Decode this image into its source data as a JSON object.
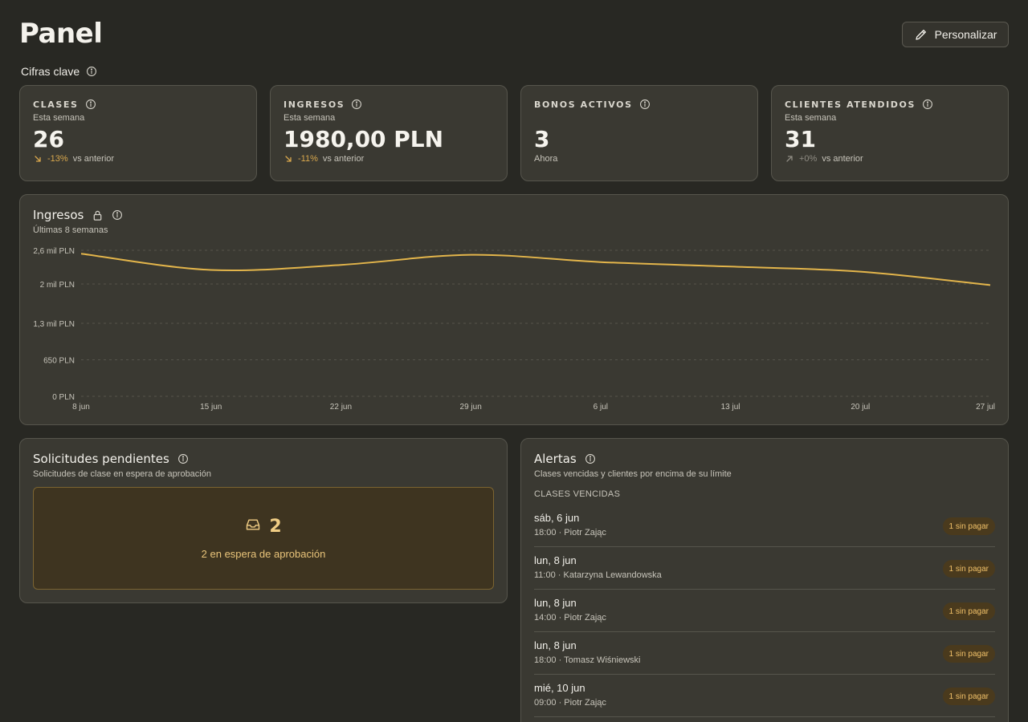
{
  "header": {
    "title": "Panel",
    "customize_label": "Personalizar"
  },
  "key_figures": {
    "label": "Cifras clave",
    "cards": [
      {
        "label": "CLASES",
        "sub": "Esta semana",
        "value": "26",
        "delta": "-13%",
        "delta_suffix": "vs anterior",
        "trend": "down"
      },
      {
        "label": "INGRESOS",
        "sub": "Esta semana",
        "value": "1980,00 PLN",
        "delta": "-11%",
        "delta_suffix": "vs anterior",
        "trend": "down"
      },
      {
        "label": "BONOS ACTIVOS",
        "sub": "",
        "value": "3",
        "delta": "",
        "delta_suffix": "Ahora",
        "trend": "none"
      },
      {
        "label": "CLIENTES ATENDIDOS",
        "sub": "Esta semana",
        "value": "31",
        "delta": "+0%",
        "delta_suffix": "vs anterior",
        "trend": "flat"
      }
    ]
  },
  "revenue": {
    "title": "Ingresos",
    "subtitle": "Últimas 8 semanas"
  },
  "chart_data": {
    "type": "line",
    "title": "Ingresos",
    "subtitle": "Últimas 8 semanas",
    "categories": [
      "8 jun",
      "15 jun",
      "22 jun",
      "29 jun",
      "6 jul",
      "13 jul",
      "20 jul",
      "27 jul"
    ],
    "series": [
      {
        "values": [
          2540,
          2250,
          2340,
          2520,
          2390,
          2310,
          2220,
          1980
        ]
      }
    ],
    "y_ticks": [
      0,
      650,
      1300,
      2000,
      2600
    ],
    "y_tick_labels": [
      "0 PLN",
      "650 PLN",
      "1,3 mil PLN",
      "2 mil PLN",
      "2,6 mil PLN"
    ],
    "ylim": [
      0,
      2600
    ],
    "grid": true,
    "line_color": "#e3b54b"
  },
  "pending": {
    "title": "Solicitudes pendientes",
    "subtitle": "Solicitudes de clase en espera de aprobación",
    "count": "2",
    "text": "2 en espera de aprobación"
  },
  "alerts": {
    "title": "Alertas",
    "subtitle": "Clases vencidas y clientes por encima de su límite",
    "section_label": "CLASES VENCIDAS",
    "items": [
      {
        "date": "sáb, 6 jun",
        "meta": "18:00 · Piotr Zając",
        "badge": "1 sin pagar"
      },
      {
        "date": "lun, 8 jun",
        "meta": "11:00 · Katarzyna Lewandowska",
        "badge": "1 sin pagar"
      },
      {
        "date": "lun, 8 jun",
        "meta": "14:00 · Piotr Zając",
        "badge": "1 sin pagar"
      },
      {
        "date": "lun, 8 jun",
        "meta": "18:00 · Tomasz Wiśniewski",
        "badge": "1 sin pagar"
      },
      {
        "date": "mié, 10 jun",
        "meta": "09:00 · Piotr Zając",
        "badge": "1 sin pagar"
      }
    ]
  }
}
